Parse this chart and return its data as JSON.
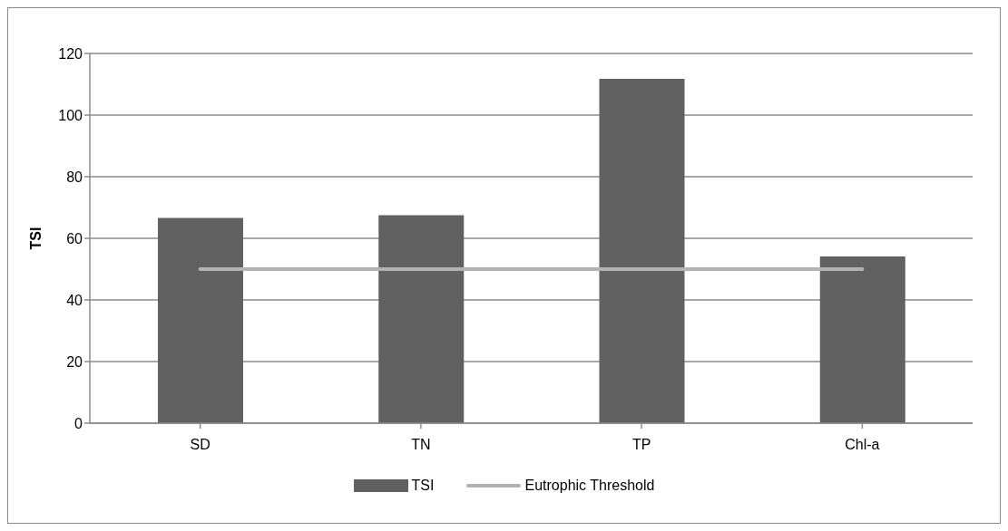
{
  "chart_data": {
    "type": "bar",
    "ylabel": "TSI",
    "categories": [
      "SD",
      "TN",
      "TP",
      "Chl-a"
    ],
    "series": [
      {
        "name": "TSI",
        "color": "#616161",
        "values": [
          66.6,
          67.5,
          111.8,
          54.1
        ]
      },
      {
        "name": "Eutrophic Threshold",
        "type": "line",
        "color": "#b3b3b3",
        "values": [
          50,
          50,
          50,
          50
        ]
      }
    ],
    "ylim": [
      0,
      120
    ],
    "yticks": [
      0,
      20,
      40,
      60,
      80,
      100,
      120
    ],
    "grid": "y",
    "legend": "bottom",
    "marker": "none"
  }
}
